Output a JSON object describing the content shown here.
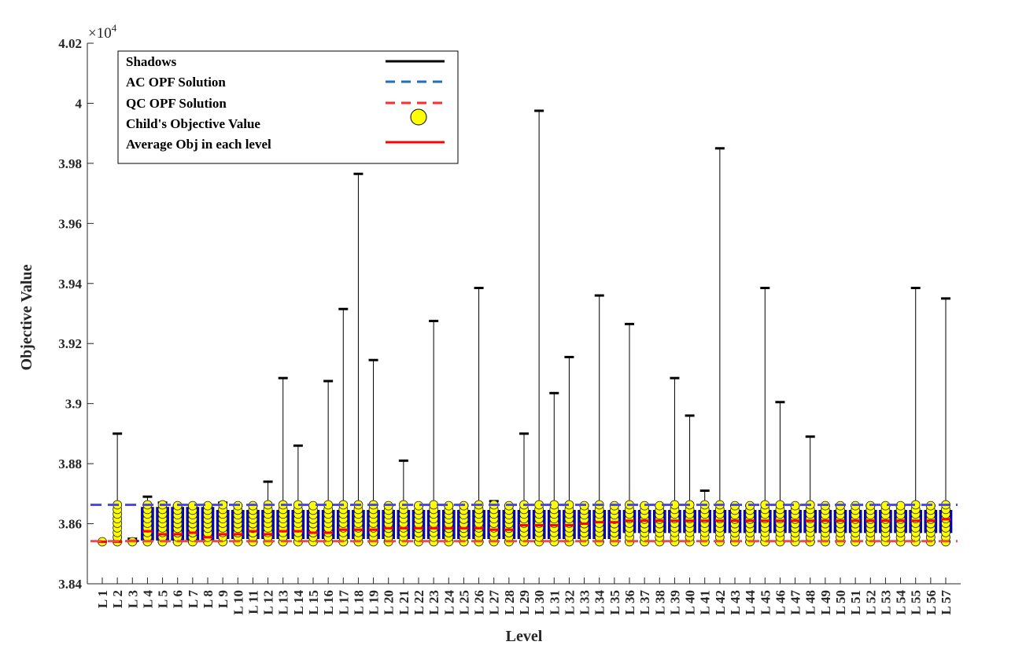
{
  "chart_data": {
    "type": "boxplot",
    "xlabel": "Level",
    "ylabel": "Objective Value",
    "y_multiplier": "×10",
    "y_multiplier_exp": "4",
    "ylim": [
      3.84,
      4.02
    ],
    "yticks": [
      "3.84",
      "3.86",
      "3.88",
      "3.9",
      "3.92",
      "3.94",
      "3.96",
      "3.98",
      "4",
      "4.02"
    ],
    "categories": [
      "L 1",
      "L 2",
      "L 3",
      "L 4",
      "L 5",
      "L 6",
      "L 7",
      "L 8",
      "L 9",
      "L 10",
      "L 11",
      "L 12",
      "L 13",
      "L 14",
      "L 15",
      "L 16",
      "L 17",
      "L 18",
      "L 19",
      "L 20",
      "L 21",
      "L 22",
      "L 23",
      "L 24",
      "L 25",
      "L 26",
      "L 27",
      "L 28",
      "L 29",
      "L 30",
      "L 31",
      "L 32",
      "L 33",
      "L 34",
      "L 35",
      "L 36",
      "L 37",
      "L 38",
      "L 39",
      "L 40",
      "L 41",
      "L 42",
      "L 43",
      "L 44",
      "L 45",
      "L 46",
      "L 47",
      "L 48",
      "L 49",
      "L 50",
      "L 51",
      "L 52",
      "L 53",
      "L 54",
      "L 55",
      "L 56",
      "L 57"
    ],
    "whisker_max": [
      3.854,
      3.89,
      3.855,
      3.869,
      3.867,
      3.866,
      3.866,
      3.866,
      3.867,
      3.866,
      3.866,
      3.874,
      3.9085,
      3.886,
      3.866,
      3.9075,
      3.9315,
      3.9765,
      3.9145,
      3.866,
      3.881,
      3.866,
      3.9275,
      3.866,
      3.866,
      3.9385,
      3.8675,
      3.866,
      3.89,
      3.9975,
      3.9035,
      3.9155,
      3.866,
      3.936,
      3.866,
      3.9265,
      3.866,
      3.866,
      3.9085,
      3.896,
      3.871,
      3.985,
      3.866,
      3.866,
      3.9385,
      3.9005,
      3.866,
      3.889,
      3.866,
      3.866,
      3.866,
      3.866,
      3.866,
      3.866,
      3.9385,
      3.866,
      3.935
    ],
    "whisker_min": [
      3.854,
      3.854,
      3.854,
      3.854,
      3.854,
      3.854,
      3.854,
      3.854,
      3.854,
      3.854,
      3.854,
      3.854,
      3.854,
      3.854,
      3.854,
      3.854,
      3.854,
      3.854,
      3.854,
      3.854,
      3.854,
      3.854,
      3.854,
      3.854,
      3.854,
      3.854,
      3.854,
      3.854,
      3.854,
      3.854,
      3.854,
      3.854,
      3.854,
      3.854,
      3.854,
      3.854,
      3.854,
      3.854,
      3.854,
      3.854,
      3.854,
      3.854,
      3.854,
      3.854,
      3.854,
      3.854,
      3.854,
      3.854,
      3.854,
      3.854,
      3.854,
      3.854,
      3.854,
      3.854,
      3.854,
      3.854,
      3.854
    ],
    "box_q1": [
      3.854,
      3.854,
      3.854,
      3.8545,
      3.8545,
      3.8545,
      3.8545,
      3.8545,
      3.855,
      3.855,
      3.855,
      3.855,
      3.855,
      3.855,
      3.855,
      3.855,
      3.855,
      3.855,
      3.855,
      3.855,
      3.855,
      3.855,
      3.855,
      3.855,
      3.855,
      3.855,
      3.855,
      3.855,
      3.855,
      3.855,
      3.855,
      3.855,
      3.855,
      3.855,
      3.855,
      3.857,
      3.857,
      3.857,
      3.857,
      3.857,
      3.857,
      3.857,
      3.857,
      3.857,
      3.857,
      3.857,
      3.857,
      3.857,
      3.857,
      3.857,
      3.857,
      3.857,
      3.857,
      3.857,
      3.857,
      3.857,
      3.857
    ],
    "box_q3": [
      3.854,
      3.854,
      3.8545,
      3.8655,
      3.8655,
      3.8655,
      3.8655,
      3.8655,
      3.8645,
      3.8645,
      3.8645,
      3.8645,
      3.8645,
      3.8645,
      3.8645,
      3.8645,
      3.8645,
      3.8645,
      3.8645,
      3.8645,
      3.8645,
      3.8645,
      3.8645,
      3.8645,
      3.8645,
      3.8645,
      3.8645,
      3.8645,
      3.8645,
      3.8645,
      3.8645,
      3.8645,
      3.8645,
      3.8645,
      3.8645,
      3.8645,
      3.8645,
      3.8645,
      3.8645,
      3.8645,
      3.8645,
      3.8645,
      3.8645,
      3.8645,
      3.8645,
      3.8645,
      3.8645,
      3.8645,
      3.8645,
      3.8645,
      3.8645,
      3.8645,
      3.8645,
      3.8645,
      3.8645,
      3.8645,
      3.8645
    ],
    "average": [
      3.854,
      3.854,
      3.8543,
      3.8575,
      3.8565,
      3.8565,
      3.857,
      3.8555,
      3.8565,
      3.8565,
      3.8575,
      3.8565,
      3.8575,
      3.8575,
      3.857,
      3.857,
      3.858,
      3.858,
      3.858,
      3.8585,
      3.8585,
      3.8585,
      3.8585,
      3.8585,
      3.8585,
      3.8585,
      3.858,
      3.858,
      3.8595,
      3.8595,
      3.8595,
      3.8595,
      3.86,
      3.8605,
      3.8605,
      3.861,
      3.861,
      3.861,
      3.861,
      3.861,
      3.861,
      3.861,
      3.861,
      3.861,
      3.861,
      3.861,
      3.861,
      3.861,
      3.861,
      3.861,
      3.861,
      3.861,
      3.861,
      3.861,
      3.861,
      3.861,
      3.8615
    ],
    "ac_opf_solution": 3.8663,
    "qc_opf_solution": 3.8542,
    "legend": [
      {
        "label": "Shadows",
        "style": "solid-black"
      },
      {
        "label": "AC OPF Solution",
        "style": "dashed-blue"
      },
      {
        "label": "QC OPF Solution",
        "style": "dashed-red"
      },
      {
        "label": "Child's Objective Value",
        "style": "yellow-circle"
      },
      {
        "label": "Average Obj in each level",
        "style": "solid-red"
      }
    ],
    "legend_position": "top-left",
    "grid": false,
    "colors": {
      "box": "#0000ff",
      "marker": "#ffff00",
      "ac_line": "#4b4bea",
      "qc_line": "#f04848",
      "average": "#ff0000"
    }
  }
}
